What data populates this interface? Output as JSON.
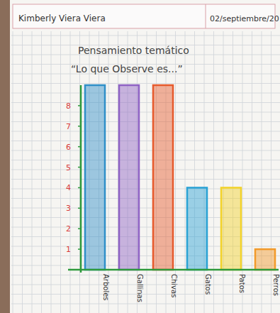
{
  "header": {
    "name": "Kimberly Viera Viera",
    "date": "02/septiembre/20"
  },
  "chart_data": {
    "type": "bar",
    "title": "Pensamiento temático",
    "subtitle": "“Lo que Observe es...”",
    "categories": [
      "Arboles",
      "Gallinas",
      "Chivas",
      "Gatos",
      "Patos",
      "Perros"
    ],
    "values": [
      9,
      9,
      9,
      4,
      4,
      1
    ],
    "colors": [
      "#2f8fc8",
      "#8e62c4",
      "#e65a2c",
      "#2aa2d4",
      "#f2d22a",
      "#f29a2a"
    ],
    "ylim": [
      0,
      9
    ],
    "yticks": [
      1,
      2,
      3,
      4,
      5,
      6,
      7,
      8
    ],
    "grid": true
  }
}
